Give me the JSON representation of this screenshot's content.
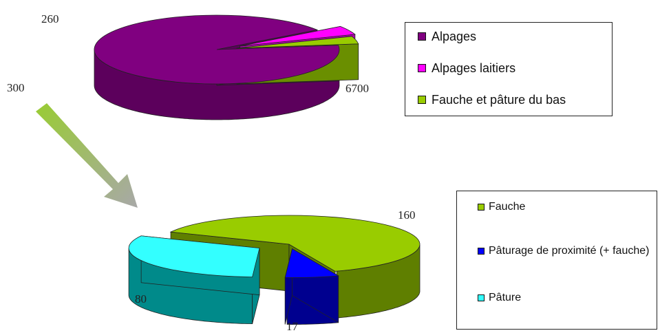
{
  "chart_data": [
    {
      "type": "pie",
      "categories": [
        "Alpages",
        "Alpages laitiers",
        "Fauche et pâture du bas"
      ],
      "values": [
        6700,
        300,
        260
      ],
      "value_labels": [
        "6700",
        "300",
        "260"
      ],
      "colors": [
        "#800080",
        "#ff00ff",
        "#99cc00"
      ],
      "side_colors": [
        "#5c005c",
        "#b000b0",
        "#6a8f00"
      ],
      "legend": "right",
      "title": ""
    },
    {
      "type": "pie",
      "categories": [
        "Fauche",
        "Pâturage de proximité (+ fauche)",
        "Pâture"
      ],
      "values": [
        160,
        17,
        80
      ],
      "value_labels": [
        "160",
        "17",
        "80"
      ],
      "colors": [
        "#99cc00",
        "#0000ff",
        "#33ffff"
      ],
      "side_colors": [
        "#5f7f00",
        "#00008f",
        "#008a8a"
      ],
      "legend": "right",
      "title": ""
    }
  ],
  "legend1": [
    {
      "label": "Alpages",
      "color": "#800080"
    },
    {
      "label": "Alpages laitiers",
      "color": "#ff00ff"
    },
    {
      "label": "Fauche et pâture du bas",
      "color": "#99cc00"
    }
  ],
  "legend2": [
    {
      "label": "Fauche",
      "color": "#99cc00"
    },
    {
      "label": "Pâturage de proximité (+ fauche)",
      "color": "#0000ff"
    },
    {
      "label": "Pâture",
      "color": "#33ffff"
    }
  ],
  "arrow": {
    "color_start": "#99cc33",
    "color_end": "#a8a8a8"
  }
}
